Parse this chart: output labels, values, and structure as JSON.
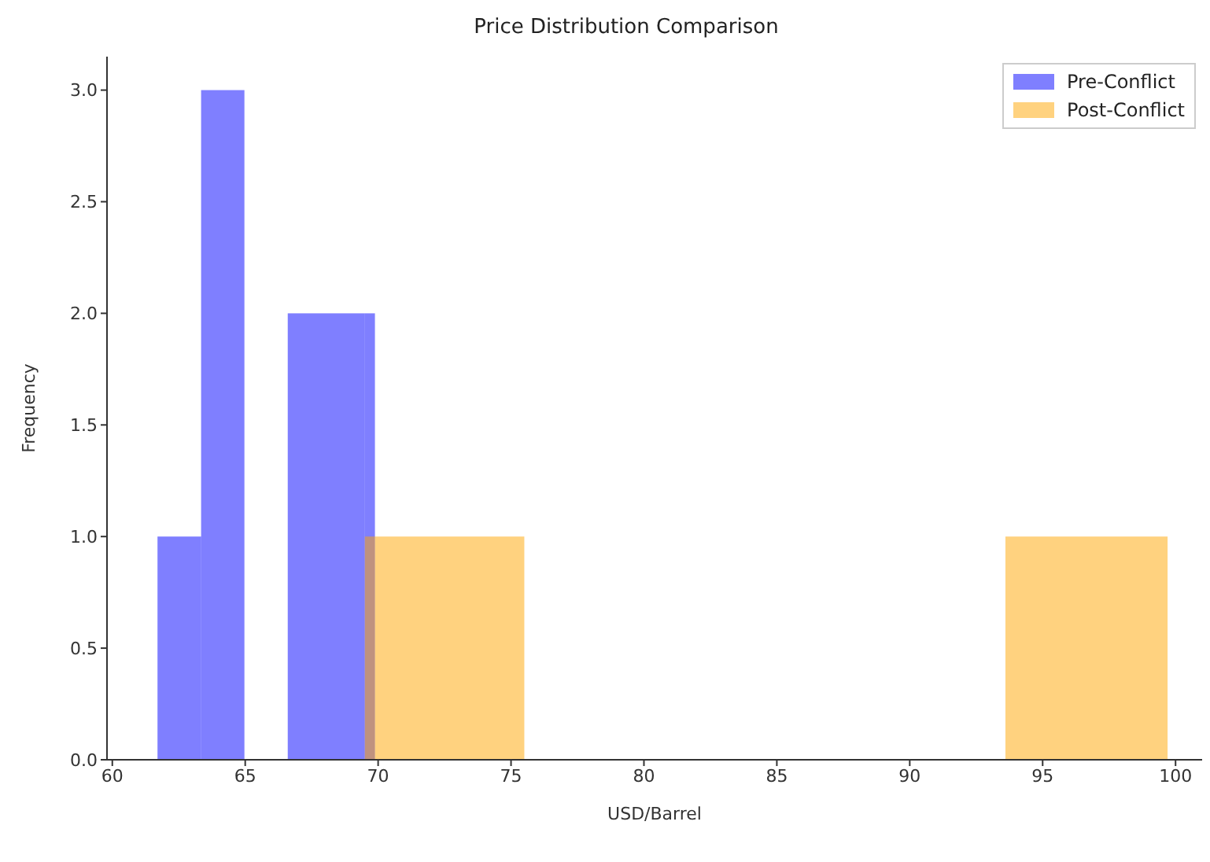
{
  "chart_data": {
    "type": "histogram",
    "title": "Price Distribution Comparison",
    "xlabel": "USD/Barrel",
    "ylabel": "Frequency",
    "bins": [
      61.7,
      63.34,
      64.97,
      66.6,
      69.5,
      69.88,
      75.5,
      93.6,
      99.7
    ],
    "series": [
      {
        "name": "Pre-Conflict",
        "color": "#7f7fff",
        "values": [
          1,
          3,
          0,
          2,
          2,
          0,
          0,
          0
        ]
      },
      {
        "name": "Post-Conflict",
        "color": "#ffd27f",
        "values": [
          0,
          0,
          0,
          0,
          1,
          1,
          0,
          1
        ]
      }
    ],
    "xlim": [
      59.8,
      101.0
    ],
    "xticks": [
      60,
      65,
      70,
      75,
      80,
      85,
      90,
      95,
      100
    ],
    "ylim": [
      0,
      3.15
    ],
    "yticks": [
      {
        "value": 0,
        "label": "0.0"
      },
      {
        "value": 0.5,
        "label": "0.5"
      },
      {
        "value": 1,
        "label": "1.0"
      },
      {
        "value": 1.5,
        "label": "1.5"
      },
      {
        "value": 2,
        "label": "2.0"
      },
      {
        "value": 2.5,
        "label": "2.5"
      },
      {
        "value": 3,
        "label": "3.0"
      }
    ],
    "grid": false,
    "legend": "top right"
  }
}
